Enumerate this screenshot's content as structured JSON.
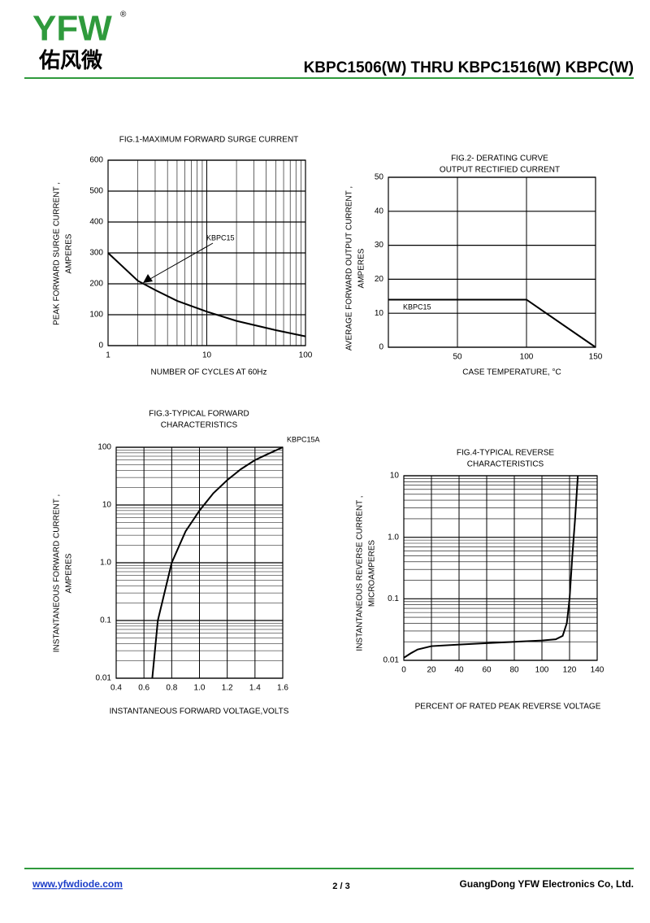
{
  "header": {
    "logo": "YFW",
    "registered": "®",
    "logo_cn": "佑风微",
    "title": "KBPC1506(W) THRU KBPC1516(W)  KBPC(W)"
  },
  "chart_data": [
    {
      "type": "line",
      "title": "FIG.1-MAXIMUM  FORWARD SURGE CURRENT",
      "x_label": "NUMBER OF CYCLES AT 60Hz",
      "y_label": [
        "PEAK FORWARD  SURGE CURRENT ,",
        "AMPERES"
      ],
      "x": [
        1,
        2,
        3,
        5,
        10,
        20,
        50,
        100
      ],
      "values": [
        300,
        210,
        180,
        145,
        110,
        80,
        50,
        30
      ],
      "xscale": "log",
      "xlim": [
        1,
        100
      ],
      "xticks": [
        1,
        10,
        100
      ],
      "ylim": [
        0,
        600
      ],
      "yticks": [
        0,
        100,
        200,
        300,
        400,
        500,
        600
      ],
      "grid": true,
      "color": "#000000",
      "annotations": [
        "KBPC15"
      ]
    },
    {
      "type": "line",
      "title": [
        "FIG.2- DERATING CURVE",
        "OUTPUT RECTIFIED CURRENT"
      ],
      "x_label": "CASE TEMPERATURE, °C",
      "y_label": [
        "AVERAGE  FORWARD  OUTPUT  CURRENT ,",
        "AMPERES"
      ],
      "x": [
        0,
        100,
        150
      ],
      "values": [
        14,
        14,
        0
      ],
      "xlim": [
        0,
        150
      ],
      "xticks": [
        50,
        100,
        150
      ],
      "ylim": [
        0,
        50
      ],
      "yticks": [
        0,
        10,
        20,
        30,
        40,
        50
      ],
      "grid": true,
      "color": "#000000",
      "annotations": [
        "KBPC15"
      ]
    },
    {
      "type": "line",
      "title": [
        "FIG.3-TYPICAL FORWARD",
        "CHARACTERISTICS"
      ],
      "x_label": "INSTANTANEOUS FORWARD VOLTAGE,VOLTS",
      "y_label": [
        "INSTANTANEOUS  FORWARD  CURRENT ,",
        "AMPERES"
      ],
      "x": [
        0.66,
        0.7,
        0.8,
        0.9,
        1.0,
        1.1,
        1.2,
        1.3,
        1.4,
        1.5,
        1.6
      ],
      "values": [
        0.01,
        0.1,
        1,
        3.5,
        8,
        16,
        27,
        42,
        60,
        78,
        100
      ],
      "xlim": [
        0.4,
        1.6
      ],
      "xticks": [
        0.4,
        0.6,
        0.8,
        {
          "value": 1,
          "label": "1.0"
        },
        1.2,
        1.4,
        1.6
      ],
      "yscale": "log",
      "ylim": [
        0.01,
        100
      ],
      "yticks": [
        0.01,
        0.1,
        {
          "value": 1,
          "label": "1.0"
        },
        10,
        100
      ],
      "grid": true,
      "color": "#000000",
      "annotations": [
        "KBPC15A"
      ]
    },
    {
      "type": "line",
      "title": [
        "FIG.4-TYPICAL REVERSE",
        "CHARACTERISTICS"
      ],
      "x_label": "PERCENT OF RATED PEAK REVERSE VOLTAGE",
      "y_label": [
        "INSTANTANEOUS  REVERSE  CURRENT ,",
        "MICROAMPERES"
      ],
      "x": [
        0,
        5,
        10,
        20,
        40,
        60,
        80,
        100,
        110,
        115,
        118,
        120,
        122,
        124,
        126
      ],
      "values": [
        0.011,
        0.013,
        0.015,
        0.017,
        0.018,
        0.019,
        0.02,
        0.021,
        0.022,
        0.025,
        0.04,
        0.1,
        0.5,
        2,
        10
      ],
      "xlim": [
        0,
        140
      ],
      "xticks": [
        0,
        20,
        40,
        60,
        80,
        100,
        120,
        140
      ],
      "yscale": "log",
      "ylim": [
        0.01,
        10
      ],
      "yticks": [
        0.01,
        0.1,
        {
          "value": 1,
          "label": "1.0"
        },
        10
      ],
      "grid": true,
      "color": "#000000"
    }
  ],
  "footer": {
    "website": "www.yfwdiode.com",
    "page": "2 / 3",
    "company": "GuangDong YFW Electronics Co, Ltd."
  }
}
